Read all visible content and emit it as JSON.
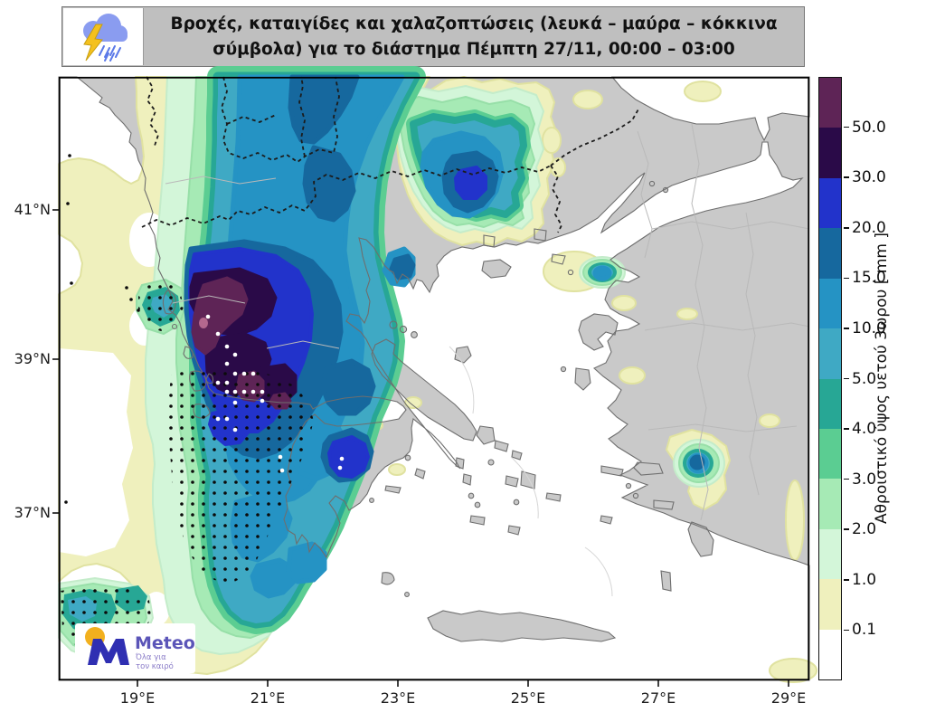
{
  "banner": {
    "title": "Βροχές, καταιγίδες και χαλαζοπτώσεις (λευκά – μαύρα – κόκκινα σύμβολα) για το διάστημα  Πέμπτη 27/11, 00:00 – 03:00",
    "icon": "storm-cloud-rain-lightning-icon"
  },
  "axes": {
    "lon_labels": [
      "19°E",
      "21°E",
      "23°E",
      "25°E",
      "27°E",
      "29°E"
    ],
    "lat_labels": [
      "41°N",
      "39°N",
      "37°N"
    ]
  },
  "colorbar": {
    "label": "Αθροιστικό ύψος υετού 3ωρου [ mm ]",
    "tick_labels": [
      "50.0",
      "30.0",
      "20.0",
      "15.0",
      "10.0",
      "5.0",
      "4.0",
      "3.0",
      "2.0",
      "1.0",
      "0.1"
    ],
    "colors_top_to_bottom": [
      "#5e2456",
      "#2a0a48",
      "#2233cb",
      "#16689e",
      "#2593c4",
      "#3fa9c4",
      "#27a795",
      "#5bcd92",
      "#a6eab5",
      "#d3f6d9",
      "#eff0bd",
      "#ffffff"
    ],
    "units": "mm"
  },
  "map": {
    "region": "Greece and the Aegean",
    "symbols_note": "λευκά – μαύρα – κόκκινα σύμβολα",
    "land_color": "#c9c9c9",
    "sea_color": "#ffffff"
  },
  "logo": {
    "brand": "Meteo",
    "tagline_line1": "Όλα για",
    "tagline_line2": "τον καιρό"
  }
}
